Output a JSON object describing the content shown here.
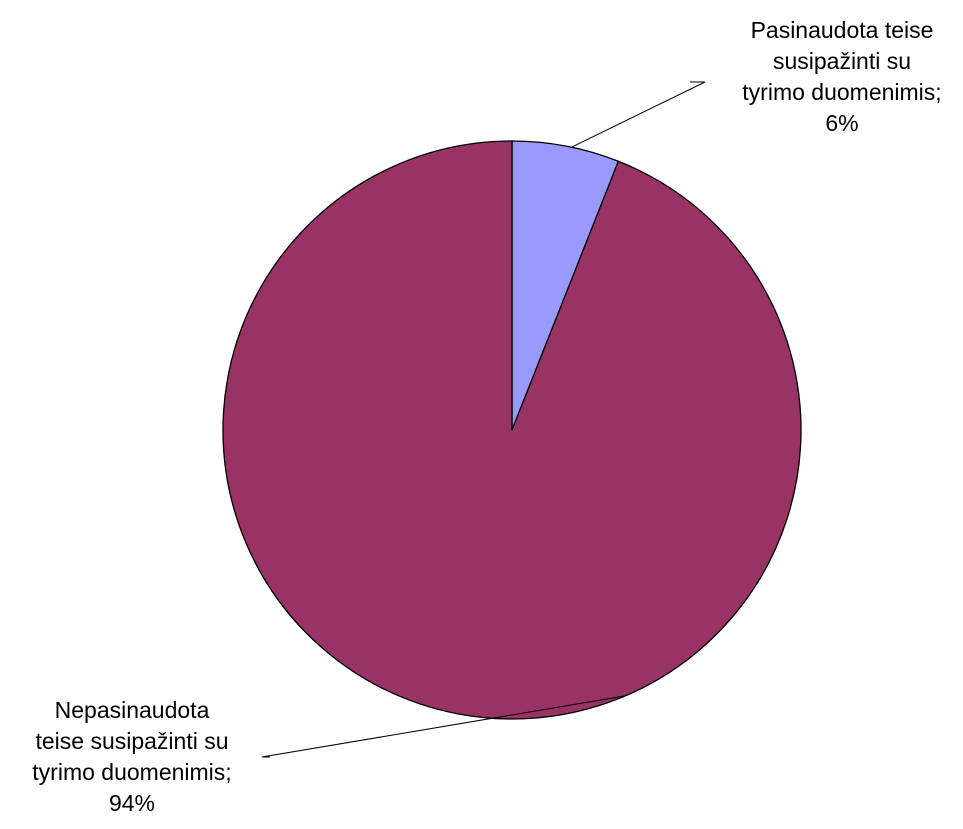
{
  "chart_data": {
    "type": "pie",
    "title": "",
    "start_angle_deg": 0,
    "direction": "clockwise",
    "slices": [
      {
        "category": "Pasinaudota teise susipažinti su tyrimo duomenimis",
        "value": 6,
        "color": "#9999ff",
        "label_lines": [
          "Pasinaudota teise",
          "susipažinti su",
          "tyrimo duomenimis;",
          "6%"
        ]
      },
      {
        "category": "Nepasinaudota teise susipažinti su tyrimo duomenimis",
        "value": 94,
        "color": "#993366",
        "label_lines": [
          "Nepasinaudota",
          "teise susipažinti su",
          "tyrimo duomenimis;",
          "94%"
        ]
      }
    ],
    "legend": "none",
    "data_labels": "outside with leader lines"
  }
}
